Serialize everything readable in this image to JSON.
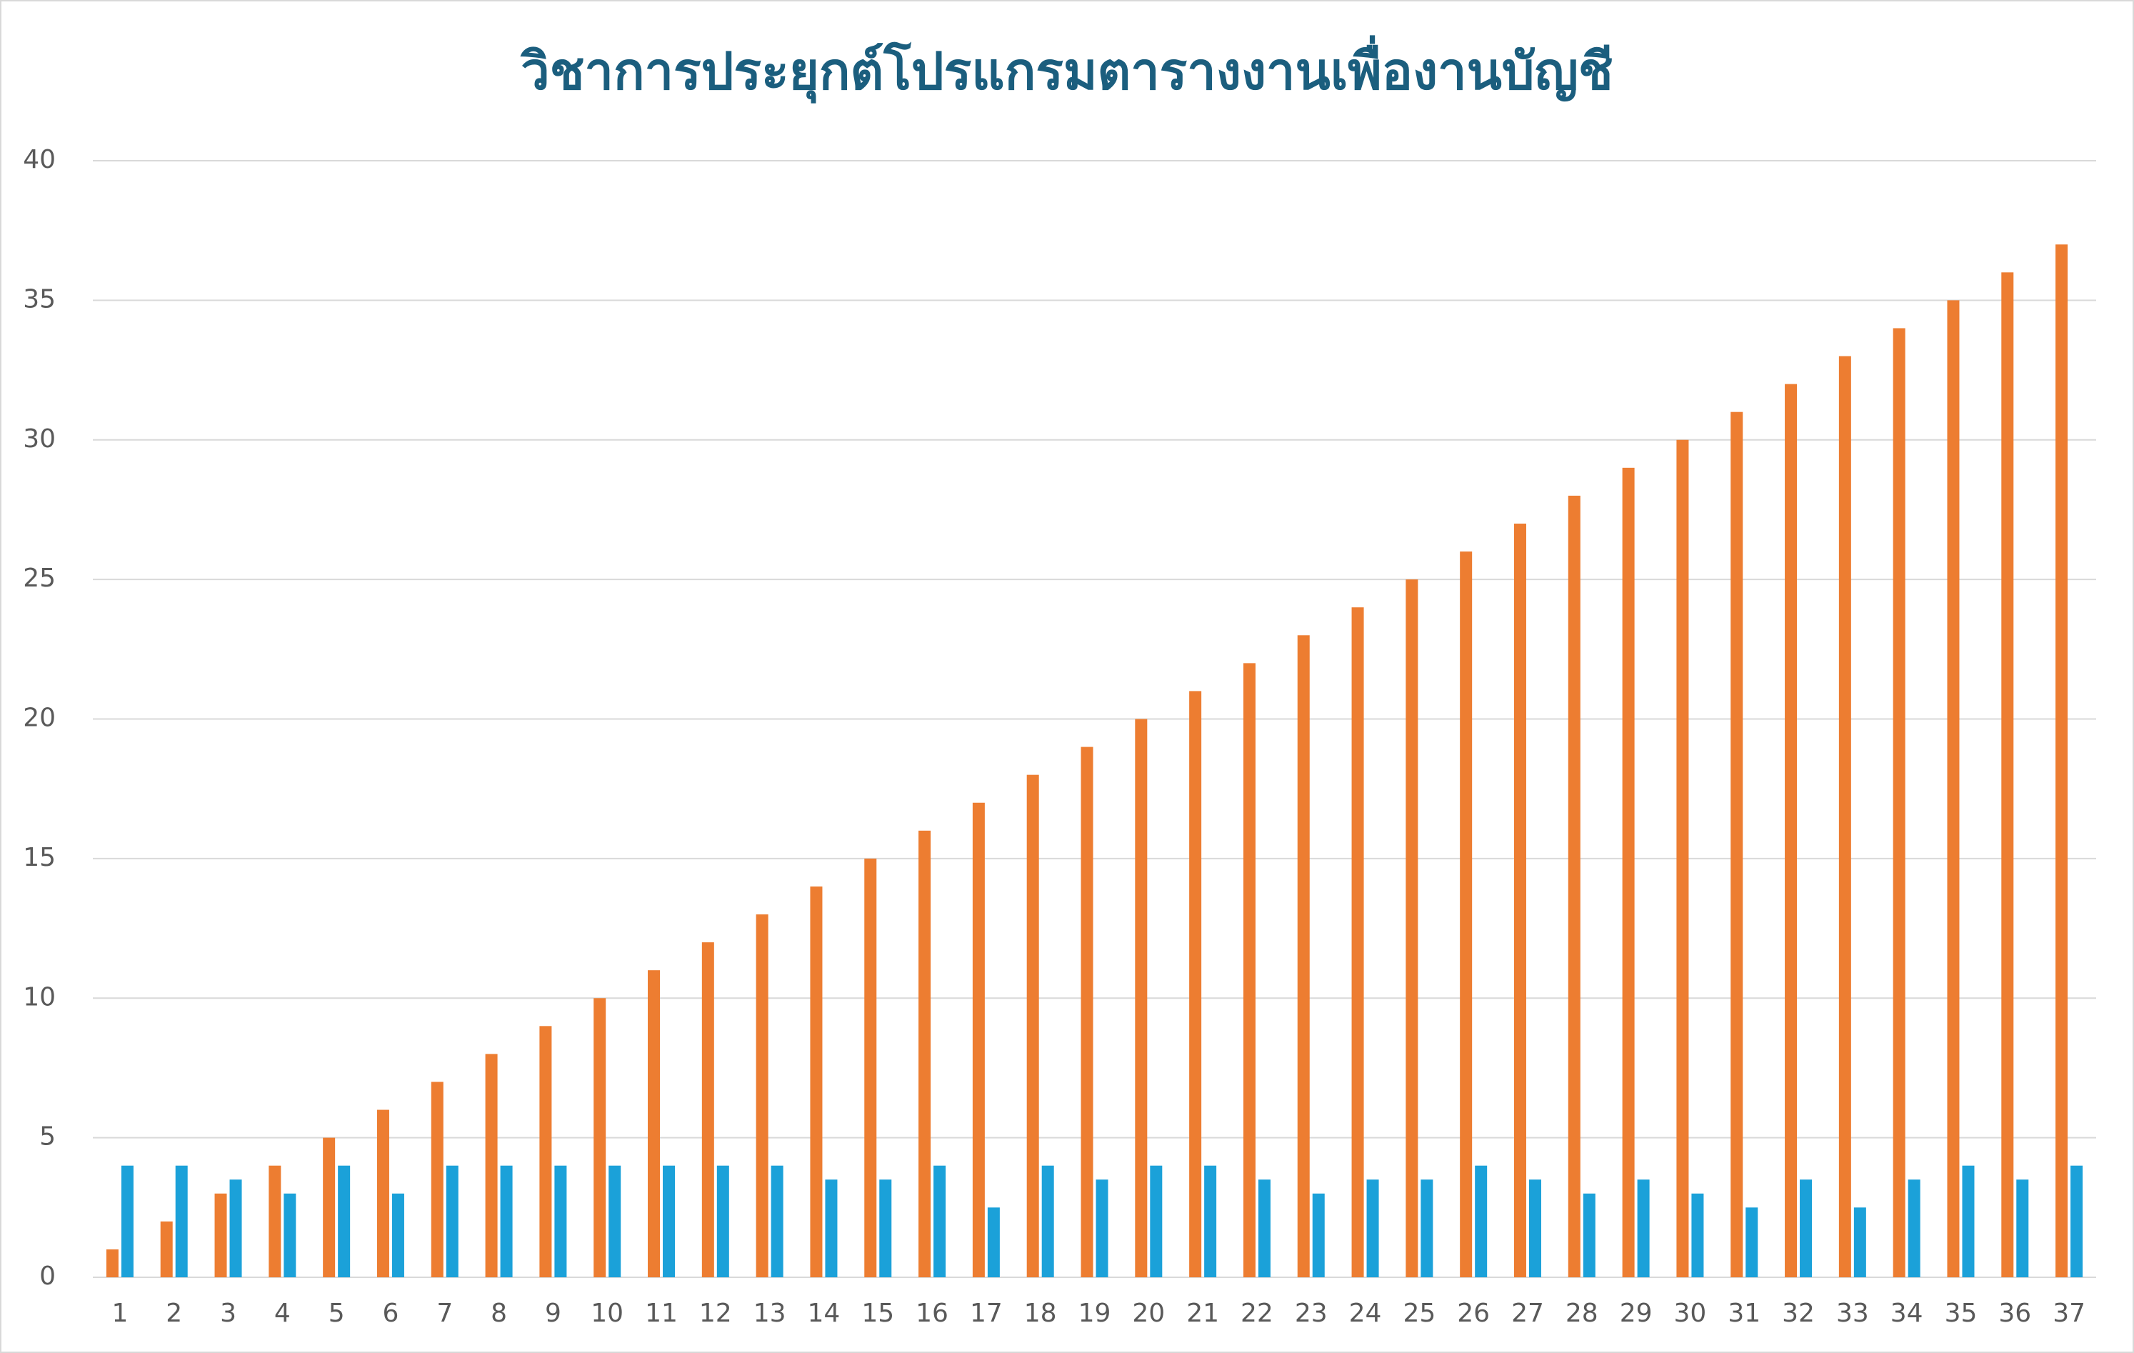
{
  "chart_data": {
    "type": "bar",
    "title": "วิชาการประยุกต์โปรแกรมตารางงานเพื่องานบัญชี",
    "categories": [
      "1",
      "2",
      "3",
      "4",
      "5",
      "6",
      "7",
      "8",
      "9",
      "10",
      "11",
      "12",
      "13",
      "14",
      "15",
      "16",
      "17",
      "18",
      "19",
      "20",
      "21",
      "22",
      "23",
      "24",
      "25",
      "26",
      "27",
      "28",
      "29",
      "30",
      "31",
      "32",
      "33",
      "34",
      "35",
      "36",
      "37"
    ],
    "series": [
      {
        "color": "#ed7d31",
        "values": [
          1,
          2,
          3,
          4,
          5,
          6,
          7,
          8,
          9,
          10,
          11,
          12,
          13,
          14,
          15,
          16,
          17,
          18,
          19,
          20,
          21,
          22,
          23,
          24,
          25,
          26,
          27,
          28,
          29,
          30,
          31,
          32,
          33,
          34,
          35,
          36,
          37
        ]
      },
      {
        "color": "#1ba1d9",
        "values": [
          4,
          4,
          3.5,
          3,
          4,
          3,
          4,
          4,
          4,
          4,
          4,
          4,
          4,
          3.5,
          3.5,
          4,
          2.5,
          4,
          3.5,
          4,
          4,
          3.5,
          3,
          3.5,
          3.5,
          4,
          3.5,
          3,
          3.5,
          3,
          2.5,
          3.5,
          2.5,
          3.5,
          4,
          3.5,
          4
        ]
      }
    ],
    "ylim": [
      0,
      40
    ],
    "yticks": [
      0,
      5,
      10,
      15,
      20,
      25,
      30,
      35,
      40
    ],
    "grid": true
  }
}
